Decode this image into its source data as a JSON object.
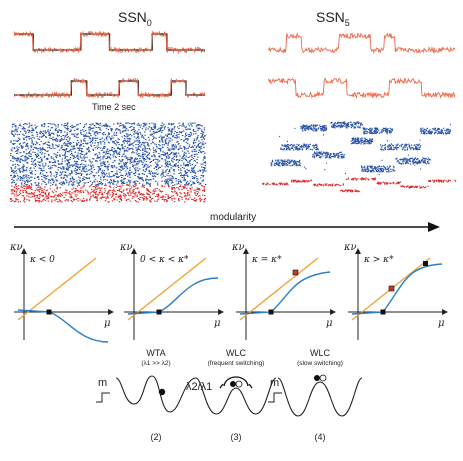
{
  "top": {
    "left_title": "SSN",
    "left_sub": "0",
    "right_title": "SSN",
    "right_sub": "5",
    "time_label": "Time 2 sec"
  },
  "modularity_label": "modularity",
  "panels": [
    {
      "ylabel": "κν",
      "xlabel": "μ",
      "condition": "κ < 0"
    },
    {
      "ylabel": "κν",
      "xlabel": "μ",
      "condition": "0 < κ < κ*"
    },
    {
      "ylabel": "κν",
      "xlabel": "μ",
      "condition": "κ = κ*"
    },
    {
      "ylabel": "κν",
      "xlabel": "μ",
      "condition": "κ > κ*"
    }
  ],
  "regimes": [
    {
      "title": "WTA",
      "subtitle": "(λ1 >> λ2)",
      "number": "(2)"
    },
    {
      "title": "WLC",
      "subtitle": "(frequent switching)",
      "number": "(3)"
    },
    {
      "title": "WLC",
      "subtitle": "(slow switching)",
      "number": "(4)"
    }
  ],
  "input_labels": {
    "m1": "m",
    "ratio": "λ2/λ1",
    "m2": "m"
  },
  "colors": {
    "excitatory": "#2b54a8",
    "inhibitory": "#d92b2b",
    "trace": "#ec6a4a",
    "identity_line": "#f0a030",
    "gain_curve": "#2a7fc8",
    "fixed_red": "#c0392b"
  }
}
